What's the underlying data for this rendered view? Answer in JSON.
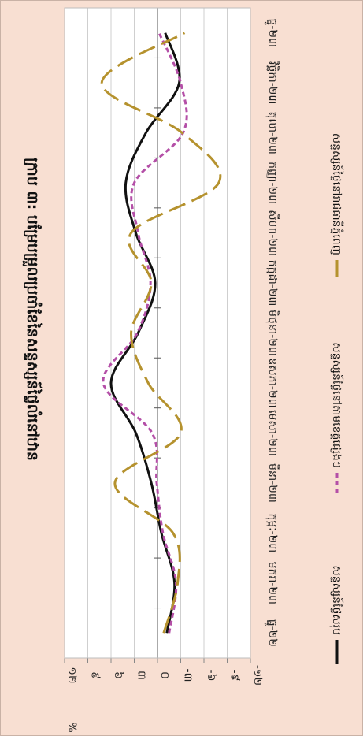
{
  "chart_data": {
    "type": "line",
    "title": "ក្រាប ៣: បម្រែបម្រួលប្រចាំខែនៃសន្ទស្សន៍ថ្លៃលំនៅឋាន",
    "ylabel": "%",
    "ylim": [
      -12,
      12
    ],
    "yticks": [
      "-១២",
      "-៩",
      "-៦",
      "-៣",
      "០",
      "៣",
      "៦",
      "៩",
      "១២"
    ],
    "categories": [
      "ធ្នូ-២២",
      "មករា-២៣",
      "កុម្ភៈ-២៣",
      "មីនា-២៣",
      "មេសា-២៣",
      "ឧសភា-២៣",
      "មិថុនា-២៣",
      "កក្កដា-២៣",
      "សីហា-២៣",
      "កញ្ញា-២៣",
      "តុលា-២៣",
      "វិច្ឆិកា-២៣",
      "ធ្នូ-២៣"
    ],
    "series": [
      {
        "name": "សន្ទស្សន៍ថ្លៃសរុប",
        "color": "#111111",
        "dash": "solid",
        "values": [
          -1.2,
          -2.2,
          -0.5,
          0.8,
          2.8,
          6.0,
          2.5,
          0.3,
          2.8,
          4.1,
          1.5,
          -2.8,
          -1.0
        ]
      },
      {
        "name": "សន្ទស្សន៍ថ្លៃនៅតាមខេត្តផ្សេងៗ",
        "color": "#b44fa7",
        "dash": "short",
        "values": [
          -1.5,
          -2.4,
          -0.7,
          0.1,
          0.7,
          7.0,
          2.6,
          0.9,
          2.5,
          3.0,
          -3.3,
          -3.0,
          -0.2
        ]
      },
      {
        "name": "សន្ទស្សន៍ថ្លៃនៅរាជធានីភ្នំពេញ",
        "color": "#b5922e",
        "dash": "long",
        "values": [
          -0.8,
          -2.6,
          -2.0,
          5.5,
          -3.0,
          1.2,
          3.4,
          0.8,
          3.4,
          -7.9,
          -3.2,
          7.2,
          -3.5
        ]
      }
    ],
    "legend": "bottom",
    "grid": true
  }
}
